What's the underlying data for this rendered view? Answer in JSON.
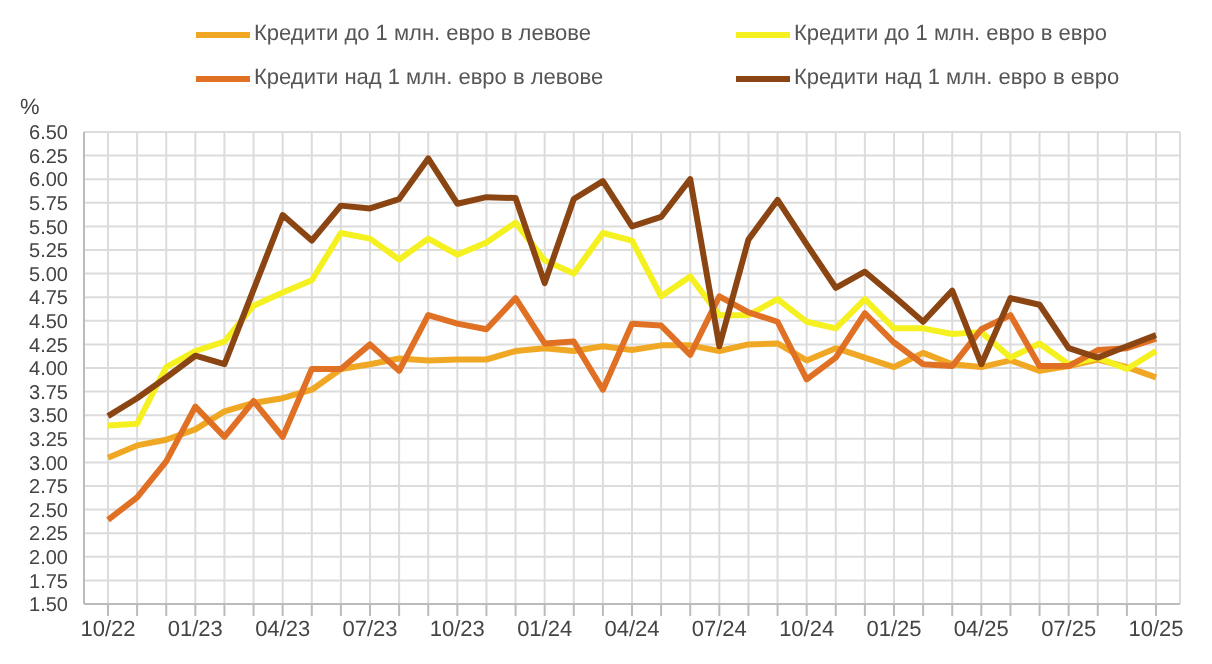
{
  "chart_data": {
    "type": "line",
    "ylabel": "%",
    "categories": [
      "10/22",
      null,
      null,
      "01/23",
      null,
      null,
      "04/23",
      null,
      null,
      "07/23",
      null,
      null,
      "10/23",
      null,
      null,
      "01/24",
      null,
      null,
      "04/24",
      null,
      null,
      "07/24",
      null,
      null,
      "10/24",
      null,
      null,
      "01/25",
      null,
      null,
      "04/25",
      null,
      null,
      "07/25",
      null,
      null,
      "10/25"
    ],
    "series": [
      {
        "name": "Кредити до 1 млн. евро в левове",
        "color": "#f0a824",
        "values": [
          3.05,
          3.18,
          3.24,
          3.35,
          3.54,
          3.63,
          3.68,
          3.77,
          3.99,
          4.04,
          4.1,
          4.08,
          4.09,
          4.09,
          4.18,
          4.21,
          4.18,
          4.23,
          4.19,
          4.24,
          4.24,
          4.18,
          4.25,
          4.26,
          4.08,
          4.21,
          4.11,
          4.01,
          4.16,
          4.04,
          4.01,
          4.08,
          3.97,
          4.02,
          4.09,
          4.01,
          3.9
        ]
      },
      {
        "name": "Кредити до 1 млн. евро в евро",
        "color": "#f5f020",
        "values": [
          3.39,
          3.41,
          4.01,
          4.18,
          4.28,
          4.66,
          4.8,
          4.93,
          5.43,
          5.37,
          5.15,
          5.37,
          5.2,
          5.33,
          5.54,
          5.14,
          5.0,
          5.43,
          5.35,
          4.76,
          4.97,
          4.56,
          4.56,
          4.73,
          4.49,
          4.42,
          4.73,
          4.42,
          4.42,
          4.36,
          4.38,
          4.11,
          4.26,
          4.04,
          4.11,
          3.99,
          4.18
        ]
      },
      {
        "name": "Кредити над 1 млн. евро в левове",
        "color": "#e07024",
        "values": [
          2.39,
          2.63,
          3.01,
          3.59,
          3.27,
          3.65,
          3.27,
          3.99,
          3.99,
          4.25,
          3.97,
          4.56,
          4.47,
          4.41,
          4.74,
          4.26,
          4.28,
          3.77,
          4.47,
          4.45,
          4.14,
          4.76,
          4.59,
          4.49,
          3.88,
          4.11,
          4.58,
          4.27,
          4.04,
          4.02,
          4.41,
          4.56,
          4.02,
          4.02,
          4.19,
          4.21,
          4.31
        ]
      },
      {
        "name": "Кредити над 1 млн. евро в евро",
        "color": "#8b4513",
        "values": [
          3.49,
          3.68,
          3.9,
          4.13,
          4.04,
          4.83,
          5.62,
          5.35,
          5.72,
          5.69,
          5.79,
          6.22,
          5.74,
          5.81,
          5.8,
          4.9,
          5.79,
          5.98,
          5.5,
          5.6,
          6.0,
          4.23,
          5.36,
          5.78,
          5.31,
          4.85,
          5.02,
          4.76,
          4.49,
          4.82,
          4.04,
          4.74,
          4.67,
          4.21,
          4.11,
          4.23,
          4.35
        ]
      }
    ],
    "ylim": [
      1.5,
      6.5
    ],
    "yticks": [
      {
        "value": 1.5,
        "label": "1.50"
      },
      {
        "value": 1.75,
        "label": "1.75"
      },
      {
        "value": 2,
        "label": "2.00"
      },
      {
        "value": 2.25,
        "label": "2.25"
      },
      {
        "value": 2.5,
        "label": "2.50"
      },
      {
        "value": 2.75,
        "label": "2.75"
      },
      {
        "value": 3,
        "label": "3.00"
      },
      {
        "value": 3.25,
        "label": "3.25"
      },
      {
        "value": 3.5,
        "label": "3.50"
      },
      {
        "value": 3.75,
        "label": "3.75"
      },
      {
        "value": 4,
        "label": "4.00"
      },
      {
        "value": 4.25,
        "label": "4.25"
      },
      {
        "value": 4.5,
        "label": "4.50"
      },
      {
        "value": 4.75,
        "label": "4.75"
      },
      {
        "value": 5,
        "label": "5.00"
      },
      {
        "value": 5.25,
        "label": "5.25"
      },
      {
        "value": 5.5,
        "label": "5.50"
      },
      {
        "value": 5.75,
        "label": "5.75"
      },
      {
        "value": 6,
        "label": "6.00"
      },
      {
        "value": 6.25,
        "label": "6.25"
      },
      {
        "value": 6.5,
        "label": "6.50"
      }
    ],
    "grid": true,
    "legend": "top",
    "marker": "none",
    "line_style": "solid"
  }
}
